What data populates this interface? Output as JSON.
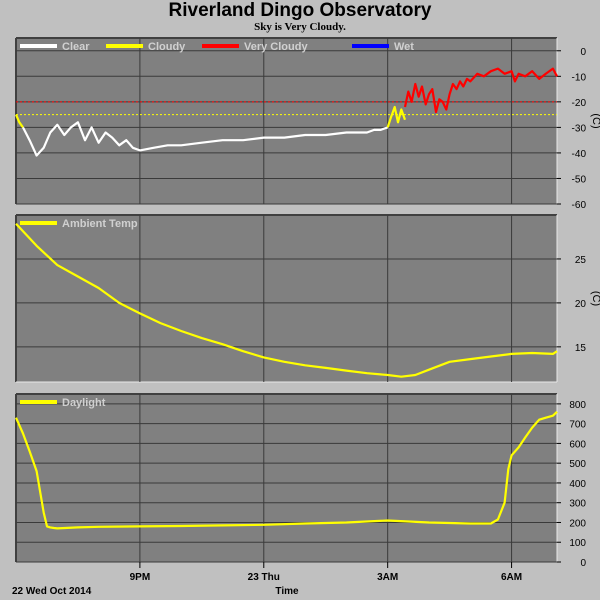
{
  "header": {
    "title": "Riverland Dingo Observatory",
    "subtitle": "Sky is Very Cloudy."
  },
  "footer": {
    "date_label": "22 Wed Oct 2014",
    "axis_label": "Time"
  },
  "colors": {
    "background": "#c0c0c0",
    "panel": "#808080",
    "grid": "#3a3a3a",
    "clear": "#ffffff",
    "cloudy": "#ffff00",
    "very_cloudy": "#ff0000",
    "wet": "#0000ff",
    "threshold_cloudy": "#ffff00",
    "threshold_very_cloudy": "#ff0000"
  },
  "chart_data": [
    {
      "type": "line",
      "panel": "sky",
      "unit": "(C)",
      "ylim": [
        -60,
        5
      ],
      "yticks": [
        0,
        -10,
        -20,
        -30,
        -40,
        -50,
        -60
      ],
      "thresholds": [
        -20,
        -25
      ],
      "legend": [
        {
          "name": "Clear",
          "color": "#ffffff"
        },
        {
          "name": "Cloudy",
          "color": "#ffff00"
        },
        {
          "name": "Very Cloudy",
          "color": "#ff0000"
        },
        {
          "name": "Wet",
          "color": "#0000ff"
        }
      ],
      "series": [
        {
          "name": "Cloudy",
          "color": "#ffff00",
          "x": [
            18.0,
            18.08,
            18.17
          ],
          "y": [
            -25,
            -28,
            -30
          ]
        },
        {
          "name": "Clear",
          "color": "#ffffff",
          "x": [
            18.17,
            18.33,
            18.5,
            18.67,
            18.83,
            19.0,
            19.17,
            19.33,
            19.5,
            19.67,
            19.83,
            20.0,
            20.17,
            20.33,
            20.5,
            20.67,
            20.83,
            21.0,
            21.33,
            21.67,
            22.0,
            22.5,
            23.0,
            23.5,
            24.0,
            24.5,
            25.0,
            25.5,
            26.0,
            26.3,
            26.5,
            26.67,
            26.83,
            27.0
          ],
          "y": [
            -30,
            -35,
            -41,
            -38,
            -32,
            -29,
            -33,
            -30,
            -28,
            -35,
            -30,
            -36,
            -32,
            -34,
            -37,
            -35,
            -38,
            -39,
            -38,
            -37,
            -37,
            -36,
            -35,
            -35,
            -34,
            -34,
            -33,
            -33,
            -32,
            -32,
            -32,
            -31,
            -31,
            -30
          ]
        },
        {
          "name": "Cloudy",
          "color": "#ffff00",
          "x": [
            27.0,
            27.08,
            27.17,
            27.25,
            27.33,
            27.42
          ],
          "y": [
            -30,
            -26,
            -22,
            -28,
            -23,
            -27
          ]
        },
        {
          "name": "Very Cloudy",
          "color": "#ff0000",
          "x": [
            27.42,
            27.5,
            27.58,
            27.67,
            27.75,
            27.83,
            27.92,
            28.0,
            28.08,
            28.17,
            28.25,
            28.33,
            28.42,
            28.5,
            28.58,
            28.67,
            28.75,
            28.83,
            28.92,
            29.0,
            29.17,
            29.33,
            29.5,
            29.67,
            29.83,
            30.0,
            30.08,
            30.17,
            30.33,
            30.5,
            30.67,
            30.83,
            31.0,
            31.1
          ],
          "y": [
            -22,
            -16,
            -20,
            -13,
            -18,
            -14,
            -21,
            -17,
            -15,
            -24,
            -19,
            -20,
            -23,
            -17,
            -13,
            -15,
            -12,
            -14,
            -11,
            -12,
            -9,
            -10,
            -8,
            -7,
            -9,
            -8,
            -12,
            -9,
            -10,
            -8,
            -11,
            -9,
            -7,
            -10
          ]
        }
      ]
    },
    {
      "type": "line",
      "panel": "ambient",
      "unit": "(C)",
      "ylim": [
        11,
        30
      ],
      "yticks": [
        25,
        20,
        15
      ],
      "legend": [
        {
          "name": "Ambient Temp",
          "color": "#ffff00"
        }
      ],
      "series": [
        {
          "name": "Ambient Temp",
          "color": "#ffff00",
          "x": [
            18.0,
            18.5,
            19.0,
            19.5,
            20.0,
            20.5,
            21.0,
            21.5,
            22.0,
            22.5,
            23.0,
            23.5,
            24.0,
            24.5,
            25.0,
            25.5,
            26.0,
            26.5,
            27.0,
            27.33,
            27.67,
            28.0,
            28.5,
            29.0,
            29.5,
            30.0,
            30.5,
            31.0,
            31.1
          ],
          "y": [
            29.0,
            26.5,
            24.3,
            23.0,
            21.7,
            20.0,
            18.8,
            17.7,
            16.8,
            16.0,
            15.3,
            14.5,
            13.8,
            13.3,
            12.9,
            12.6,
            12.3,
            12.0,
            11.8,
            11.6,
            11.8,
            12.4,
            13.3,
            13.6,
            13.9,
            14.2,
            14.3,
            14.2,
            14.5
          ]
        }
      ]
    },
    {
      "type": "line",
      "panel": "daylight",
      "ylim": [
        0,
        850
      ],
      "yticks": [
        800,
        700,
        600,
        500,
        400,
        300,
        200,
        100,
        0
      ],
      "legend": [
        {
          "name": "Daylight",
          "color": "#ffff00"
        }
      ],
      "series": [
        {
          "name": "Daylight",
          "color": "#ffff00",
          "x": [
            18.0,
            18.17,
            18.33,
            18.5,
            18.67,
            18.75,
            18.83,
            18.92,
            19.0,
            19.5,
            20.0,
            21.0,
            22.0,
            23.0,
            24.0,
            25.0,
            26.0,
            27.0,
            28.0,
            29.0,
            29.5,
            29.67,
            29.83,
            29.92,
            30.0,
            30.17,
            30.33,
            30.5,
            30.67,
            30.83,
            31.0,
            31.1
          ],
          "y": [
            730,
            650,
            560,
            460,
            250,
            180,
            175,
            172,
            170,
            175,
            178,
            180,
            182,
            185,
            188,
            195,
            200,
            210,
            200,
            195,
            195,
            215,
            300,
            470,
            540,
            580,
            630,
            680,
            720,
            730,
            740,
            760
          ]
        }
      ]
    }
  ],
  "x_axis": {
    "range": [
      18.0,
      31.1
    ],
    "ticks": [
      {
        "value": 21,
        "label": "9PM"
      },
      {
        "value": 24,
        "label": "23 Thu"
      },
      {
        "value": 27,
        "label": "3AM"
      },
      {
        "value": 30,
        "label": "6AM"
      }
    ]
  }
}
